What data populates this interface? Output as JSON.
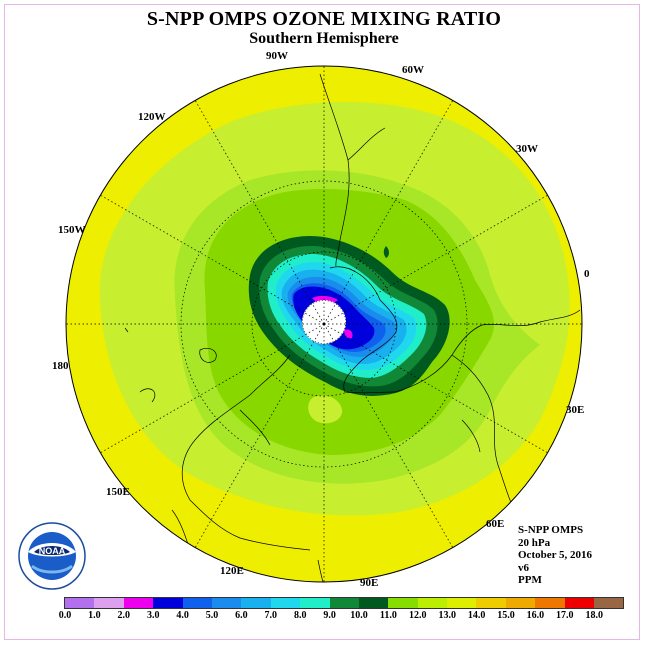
{
  "title": "S-NPP OMPS OZONE MIXING RATIO",
  "subtitle": "Southern Hemisphere",
  "longitude_labels": {
    "90W": "90W",
    "60W": "60W",
    "30W": "30W",
    "120W": "120W",
    "150W": "150W",
    "0": "0",
    "180": "180",
    "30E": "30E",
    "60E": "60E",
    "90E": "90E",
    "120E": "120E",
    "150E": "150E"
  },
  "info": {
    "instrument": "S-NPP OMPS",
    "level": "20 hPa",
    "date": "October 5, 2016",
    "version": "v6",
    "units": "PPM"
  },
  "logo_text": "NOAA",
  "colorbar": {
    "colors": [
      "#b370ee",
      "#dda0ee",
      "#ee00ee",
      "#0000dd",
      "#1060ee",
      "#1a8cee",
      "#18b0ee",
      "#20d8ee",
      "#20eec8",
      "#108838",
      "#005a20",
      "#88dd00",
      "#bbee00",
      "#ddee00",
      "#eecc00",
      "#eeaa00",
      "#ee7700",
      "#ee0000",
      "#996644"
    ],
    "ticks": [
      "0.0",
      "1.0",
      "2.0",
      "3.0",
      "4.0",
      "5.0",
      "6.0",
      "7.0",
      "8.0",
      "9.0",
      "10.0",
      "11.0",
      "12.0",
      "13.0",
      "14.0",
      "15.0",
      "16.0",
      "17.0",
      "18.0"
    ]
  },
  "map_colors": {
    "yellow": "#eeee00",
    "light_yellow_green": "#c8ee30",
    "light_green": "#a8e628",
    "green": "#88d800",
    "dark_green": "#005a20",
    "med_green": "#108838",
    "aqua": "#20eec8",
    "cyan": "#20d8ee",
    "sky": "#18b0ee",
    "blue": "#1a8cee",
    "royal": "#1060ee",
    "navy": "#0000dd",
    "magenta": "#ee00ee"
  }
}
